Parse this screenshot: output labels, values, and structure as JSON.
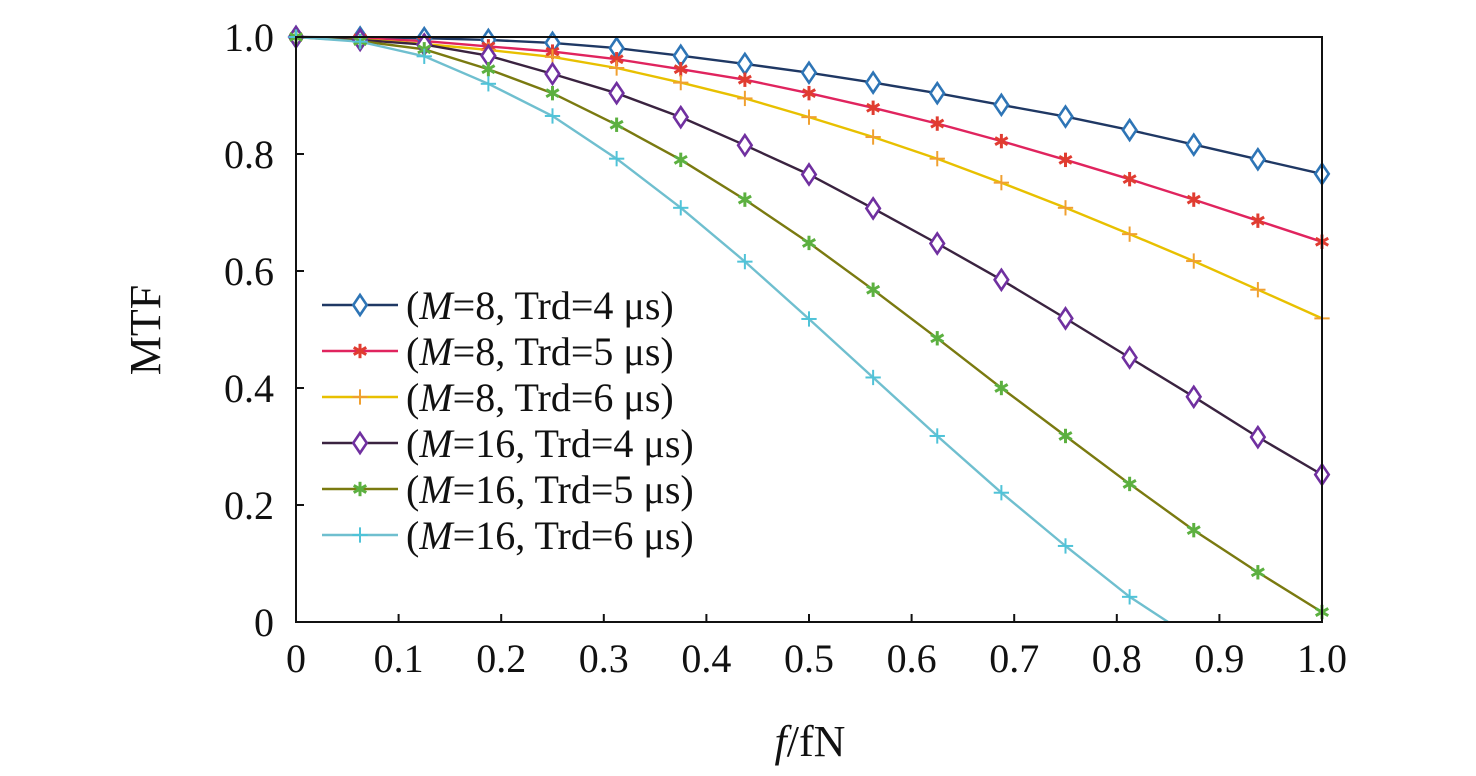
{
  "chart_data": {
    "type": "line",
    "xlabel_italic": "f",
    "xlabel_rest": "/fN",
    "ylabel": "MTF",
    "xlim": [
      0,
      1.0
    ],
    "ylim": [
      0,
      1.0
    ],
    "xticks": [
      0,
      0.1,
      0.2,
      0.3,
      0.4,
      0.5,
      0.6,
      0.7,
      0.8,
      0.9,
      1.0
    ],
    "xtick_labels": [
      "0",
      "0.1",
      "0.2",
      "0.3",
      "0.4",
      "0.5",
      "0.6",
      "0.7",
      "0.8",
      "0.9",
      "1.0"
    ],
    "yticks": [
      0,
      0.2,
      0.4,
      0.6,
      0.8,
      1.0
    ],
    "ytick_labels": [
      "0",
      "0.2",
      "0.4",
      "0.6",
      "0.8",
      "1.0"
    ],
    "grid": false,
    "legend_position": "center-left",
    "x": [
      0,
      0.0625,
      0.125,
      0.1875,
      0.25,
      0.3125,
      0.375,
      0.4375,
      0.5,
      0.5625,
      0.625,
      0.6875,
      0.75,
      0.8125,
      0.875,
      0.9375,
      1.0
    ],
    "series": [
      {
        "legend_prefix": "(",
        "legend_italic": "M",
        "legend_suffix": "=8, Trd=4 μs)",
        "color": "#2E75B6",
        "line_color": "#1F3864",
        "marker": "diamond",
        "values": [
          1.0,
          0.999,
          0.998,
          0.995,
          0.99,
          0.981,
          0.968,
          0.954,
          0.939,
          0.922,
          0.904,
          0.884,
          0.864,
          0.841,
          0.816,
          0.791,
          0.766
        ]
      },
      {
        "legend_prefix": "(",
        "legend_italic": "M",
        "legend_suffix": "=8, Trd=5 μs)",
        "color": "#E03C31",
        "line_color": "#E0245E",
        "marker": "asterisk",
        "values": [
          1.0,
          0.998,
          0.993,
          0.984,
          0.975,
          0.962,
          0.945,
          0.927,
          0.904,
          0.879,
          0.852,
          0.822,
          0.79,
          0.757,
          0.722,
          0.686,
          0.65
        ]
      },
      {
        "legend_prefix": "(",
        "legend_italic": "M",
        "legend_suffix": "=8, Trd=6 μs)",
        "color": "#F0A030",
        "line_color": "#E8C000",
        "marker": "plus",
        "values": [
          1.0,
          0.996,
          0.988,
          0.978,
          0.966,
          0.947,
          0.922,
          0.895,
          0.863,
          0.829,
          0.792,
          0.751,
          0.708,
          0.663,
          0.617,
          0.568,
          0.519
        ]
      },
      {
        "legend_prefix": "(",
        "legend_italic": "M",
        "legend_suffix": "=16, Trd=4 μs)",
        "color": "#7030A0",
        "line_color": "#3A2340",
        "marker": "diamond",
        "values": [
          1.0,
          0.995,
          0.987,
          0.968,
          0.937,
          0.904,
          0.863,
          0.815,
          0.765,
          0.707,
          0.647,
          0.585,
          0.519,
          0.452,
          0.385,
          0.316,
          0.252
        ]
      },
      {
        "legend_prefix": "(",
        "legend_italic": "M",
        "legend_suffix": "=16, Trd=5 μs)",
        "color": "#5CB040",
        "line_color": "#7A7A10",
        "marker": "asterisk",
        "values": [
          1.0,
          0.993,
          0.979,
          0.945,
          0.904,
          0.85,
          0.79,
          0.722,
          0.648,
          0.568,
          0.485,
          0.4,
          0.318,
          0.236,
          0.157,
          0.085,
          0.017
        ]
      },
      {
        "legend_prefix": "(",
        "legend_italic": "M",
        "legend_suffix": "=16, Trd=6 μs)",
        "color": "#4FC3D8",
        "line_color": "#6FBFCF",
        "marker": "plus",
        "values": [
          1.0,
          0.992,
          0.967,
          0.92,
          0.865,
          0.792,
          0.708,
          0.616,
          0.518,
          0.418,
          0.318,
          0.221,
          0.13,
          0.043,
          null,
          null,
          null
        ],
        "end_point": [
          0.85,
          0.0
        ]
      }
    ]
  }
}
